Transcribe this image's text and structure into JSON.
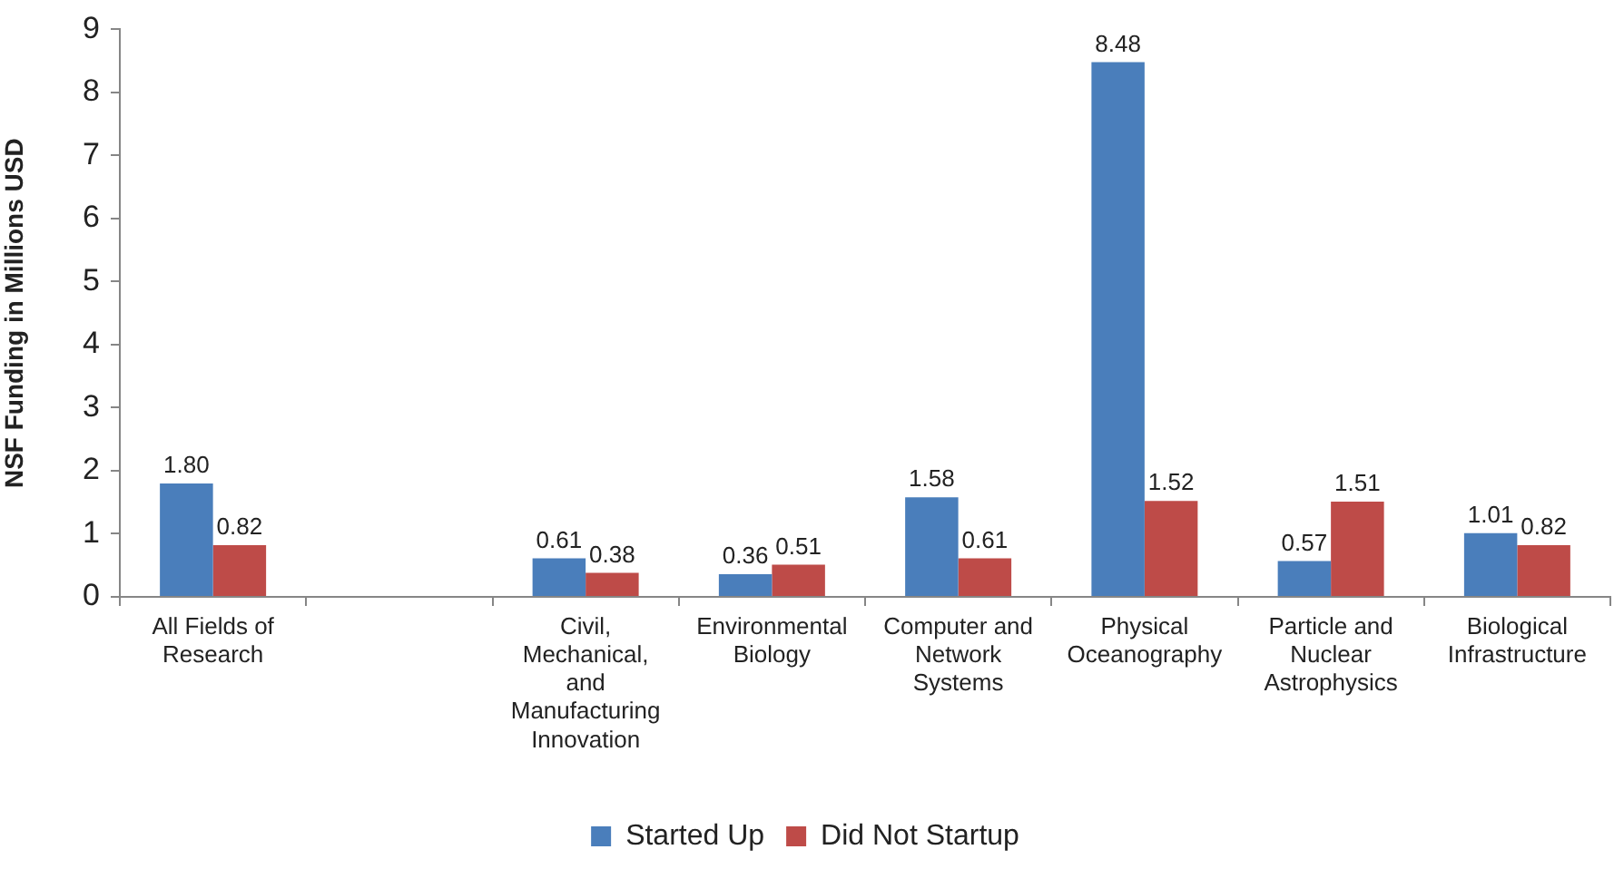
{
  "chart_data": {
    "type": "bar",
    "categories": [
      "All Fields of Research",
      null,
      "Civil, Mechanical, and Manufacturing Innovation",
      "Environmental Biology",
      "Computer and Network Systems",
      "Physical Oceanography",
      "Particle and Nuclear Astrophysics",
      "Biological Infrastructure"
    ],
    "series": [
      {
        "name": "Started Up",
        "color": "#4a7ebb",
        "values": [
          1.8,
          null,
          0.61,
          0.36,
          1.58,
          8.48,
          0.57,
          1.01
        ],
        "value_labels": [
          "1.80",
          null,
          "0.61",
          "0.36",
          "1.58",
          "8.48",
          "0.57",
          "1.01"
        ]
      },
      {
        "name": "Did Not Startup",
        "color": "#be4b48",
        "values": [
          0.82,
          null,
          0.38,
          0.51,
          0.61,
          1.52,
          1.51,
          0.82
        ],
        "value_labels": [
          "0.82",
          null,
          "0.38",
          "0.51",
          "0.61",
          "1.52",
          "1.51",
          "0.82"
        ]
      }
    ],
    "ylabel": "NSF Funding in Millions USD",
    "ylim": [
      0,
      9
    ],
    "yticks": [
      0,
      1,
      2,
      3,
      4,
      5,
      6,
      7,
      8,
      9
    ],
    "grid": false,
    "legend": "bottom"
  }
}
